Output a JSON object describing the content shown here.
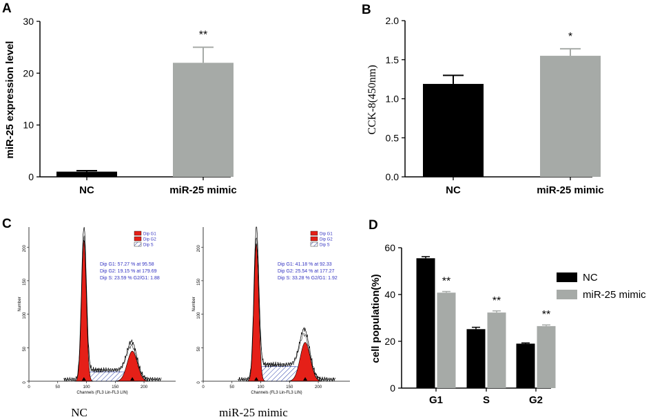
{
  "colors": {
    "nc": "#000000",
    "mimic": "#a6aaa7",
    "flow_red": "#e52018",
    "flow_hatch": "#2a3fa8"
  },
  "panels": {
    "A": {
      "letter": "A"
    },
    "B": {
      "letter": "B"
    },
    "C": {
      "letter": "C"
    },
    "D": {
      "letter": "D"
    }
  },
  "chart_data": [
    {
      "id": "A",
      "type": "bar",
      "categories": [
        "NC",
        "miR-25 mimic"
      ],
      "values": [
        1,
        22
      ],
      "errors": [
        0.2,
        3
      ],
      "significance": [
        "",
        "**"
      ],
      "ylabel": "miR-25 expression level",
      "ylim": [
        0,
        30
      ],
      "yticks": [
        0,
        10,
        20,
        30
      ],
      "ytick_labels": [
        "0",
        "10",
        "20",
        "30"
      ]
    },
    {
      "id": "B",
      "type": "bar",
      "categories": [
        "NC",
        "miR-25 mimic"
      ],
      "values": [
        1.19,
        1.55
      ],
      "errors": [
        0.11,
        0.09
      ],
      "significance": [
        "",
        "*"
      ],
      "ylabel": "CCK-8(450nm)",
      "ylim": [
        0,
        2.0
      ],
      "yticks": [
        0,
        0.5,
        1.0,
        1.5,
        2.0
      ],
      "ytick_labels": [
        "0.0",
        "0.5",
        "1.0",
        "1.5",
        "2.0"
      ]
    },
    {
      "id": "C",
      "type": "histogram",
      "panels": [
        {
          "caption": "NC",
          "legend": [
            "Dip G1",
            "Dip G2",
            "Dip S"
          ],
          "stats": [
            "Dip G1: 57.27 % at 95.58",
            "Dip G2: 19.15 % at 179.69",
            "Dip S: 23.59 %    G2/G1: 1.88"
          ],
          "g1_peak": 95.58,
          "g2_peak": 179.69,
          "g1_height": 210,
          "g2_height": 45
        },
        {
          "caption": "miR-25 mimic",
          "legend": [
            "Dip G1",
            "Dip G2",
            "Dip S"
          ],
          "stats": [
            "Dip G1: 41.18 % at 92.33",
            "Dip G2: 25.54 % at 177.27",
            "Dip S: 33.28 %    G2/G1: 1.92"
          ],
          "g1_peak": 92.33,
          "g2_peak": 177.27,
          "g1_height": 205,
          "g2_height": 58
        }
      ],
      "xlabel": "Channels (FL3 Lin-FL3 LIN)",
      "ylabel": "Number",
      "xticks": [
        0,
        50,
        100,
        150,
        200
      ],
      "yticks": [
        0,
        50,
        100,
        150,
        200
      ]
    },
    {
      "id": "D",
      "type": "bar",
      "categories": [
        "G1",
        "S",
        "G2"
      ],
      "series": [
        {
          "name": "NC",
          "values": [
            55.5,
            25.2,
            19
          ],
          "errors": [
            0.7,
            0.8,
            0.3
          ]
        },
        {
          "name": "miR-25 mimic",
          "values": [
            40.8,
            32.3,
            26.5
          ],
          "errors": [
            0.5,
            0.7,
            0.5
          ]
        }
      ],
      "significance": [
        "**",
        "**",
        "**"
      ],
      "ylabel": "cell population(%)",
      "ylim": [
        0,
        60
      ],
      "yticks": [
        0,
        20,
        40,
        60
      ],
      "ytick_labels": [
        "0",
        "20",
        "40",
        "60"
      ],
      "legend_position": "top-right"
    }
  ]
}
